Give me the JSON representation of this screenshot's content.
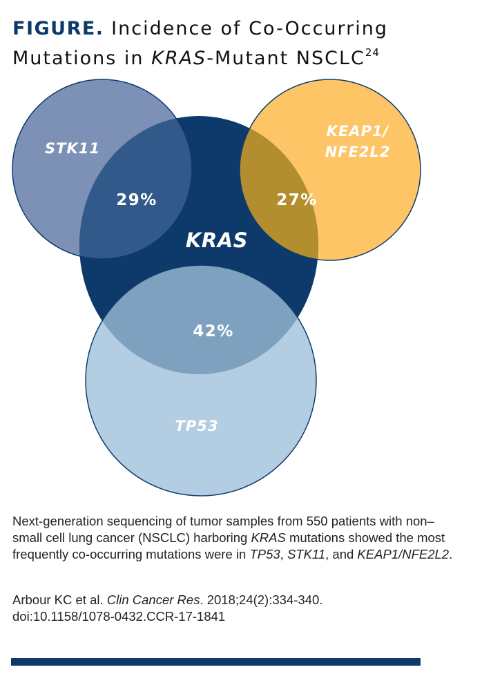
{
  "figure": {
    "label": "FIGURE.",
    "title_part1": "Incidence of Co-Occurring",
    "title_part2": "Mutations in",
    "title_gene": "KRAS",
    "title_part3": "-Mutant NSCLC",
    "title_ref": "24"
  },
  "venn": {
    "sets": [
      {
        "name": "KRAS",
        "color": "#0e3a6b"
      },
      {
        "name": "STK11",
        "color": "#7d91b7"
      },
      {
        "name": "KEAP1/",
        "name_line2": "NFE2L2",
        "color": "#fdc565"
      },
      {
        "name": "TP53",
        "color": "#b3cde2"
      }
    ],
    "intersections": [
      {
        "sets": [
          "KRAS",
          "STK11"
        ],
        "label": "29%",
        "value": 29,
        "color": "#315a8a"
      },
      {
        "sets": [
          "KRAS",
          "KEAP1/NFE2L2"
        ],
        "label": "27%",
        "value": 27,
        "color": "#b38e2f"
      },
      {
        "sets": [
          "KRAS",
          "TP53"
        ],
        "label": "42%",
        "value": 42,
        "color": "#7fa1c0"
      }
    ]
  },
  "caption": {
    "part1": "Next-generation sequencing of tumor samples from 550 patients with non–small cell lung cancer (NSCLC) harboring",
    "gene1": "KRAS",
    "part2": "mutations showed the most frequently co-occurring mutations were in",
    "gene2": "TP53",
    "sep1": ",",
    "gene3": "STK11",
    "sep2": ", and",
    "gene4": "KEAP1/NFE2L2",
    "end": "."
  },
  "citation": {
    "authors": "Arbour KC et al.",
    "journal": "Clin Cancer Res",
    "details": ". 2018;24(2):334-340.",
    "doi": "doi:10.1158/1078-0432.CCR-17-1841"
  }
}
